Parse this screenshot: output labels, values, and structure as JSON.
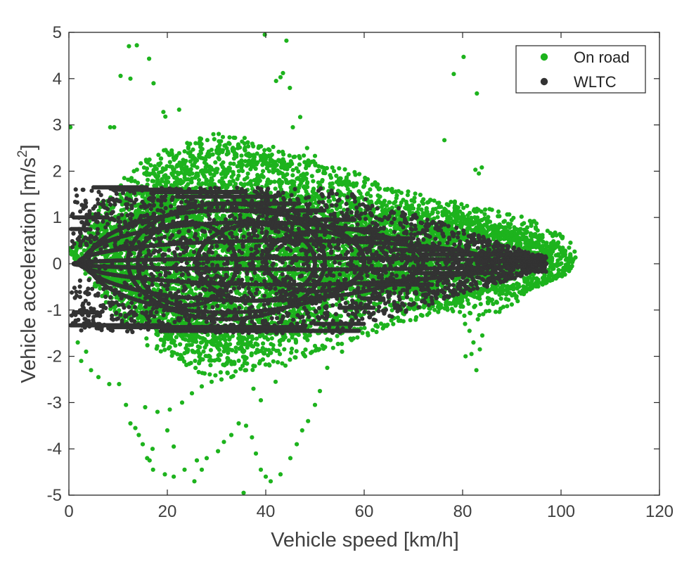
{
  "chart_data": {
    "type": "scatter",
    "xlabel": "Vehicle speed [km/h]",
    "ylabel_main": "Vehicle acceleration [m/s",
    "ylabel_sup": "2",
    "ylabel_close": "]",
    "xlim": [
      0,
      120
    ],
    "ylim": [
      -5,
      5
    ],
    "xticks": [
      0,
      20,
      40,
      60,
      80,
      100,
      120
    ],
    "yticks": [
      -5,
      -4,
      -3,
      -2,
      -1,
      0,
      1,
      2,
      3,
      4,
      5
    ],
    "grid": false,
    "legend_position": "top-right",
    "series": [
      {
        "name": "On road",
        "color": "#1db31d",
        "points": [
          [
            13.8,
            4.72
          ],
          [
            12.2,
            4.7
          ],
          [
            10.5,
            4.06
          ],
          [
            12.5,
            4.0
          ],
          [
            16.3,
            4.43
          ],
          [
            17.2,
            3.9
          ],
          [
            19.2,
            3.28
          ],
          [
            19.6,
            3.18
          ],
          [
            22.4,
            3.33
          ],
          [
            8.4,
            2.95
          ],
          [
            9.2,
            2.95
          ],
          [
            0.3,
            2.95
          ],
          [
            39.8,
            4.95
          ],
          [
            44.2,
            4.82
          ],
          [
            43.5,
            4.12
          ],
          [
            43.0,
            4.03
          ],
          [
            42.1,
            3.95
          ],
          [
            44.9,
            3.8
          ],
          [
            47.0,
            3.17
          ],
          [
            45.5,
            2.95
          ],
          [
            48.4,
            2.5
          ],
          [
            50.0,
            2.33
          ],
          [
            48.5,
            2.2
          ],
          [
            80.2,
            4.47
          ],
          [
            78.2,
            4.1
          ],
          [
            82.9,
            3.68
          ],
          [
            76.3,
            2.67
          ],
          [
            82.6,
            2.03
          ],
          [
            83.9,
            2.08
          ],
          [
            83.3,
            1.95
          ],
          [
            10.2,
            -2.6
          ],
          [
            11.6,
            -3.05
          ],
          [
            12.5,
            -3.45
          ],
          [
            14.2,
            -3.7
          ],
          [
            13.5,
            -3.55
          ],
          [
            15.0,
            -3.9
          ],
          [
            17.0,
            -4.0
          ],
          [
            16.4,
            -4.25
          ],
          [
            20.0,
            -3.6
          ],
          [
            21.3,
            -3.95
          ],
          [
            15.9,
            -4.2
          ],
          [
            17.1,
            -4.45
          ],
          [
            19.5,
            -4.55
          ],
          [
            21.3,
            -4.6
          ],
          [
            23.5,
            -4.45
          ],
          [
            25.5,
            -4.7
          ],
          [
            27.0,
            -4.45
          ],
          [
            26.0,
            -4.25
          ],
          [
            28.0,
            -4.2
          ],
          [
            30.3,
            -4.05
          ],
          [
            31.5,
            -3.85
          ],
          [
            33.0,
            -3.7
          ],
          [
            34.5,
            -3.45
          ],
          [
            36.0,
            -3.5
          ],
          [
            37.2,
            -3.75
          ],
          [
            38.0,
            -4.1
          ],
          [
            39.0,
            -4.45
          ],
          [
            41.0,
            -4.7
          ],
          [
            43.0,
            -4.55
          ],
          [
            45.0,
            -4.2
          ],
          [
            46.3,
            -3.9
          ],
          [
            47.4,
            -3.6
          ],
          [
            48.6,
            -3.4
          ],
          [
            50.0,
            -3.05
          ],
          [
            51.0,
            -2.75
          ],
          [
            35.5,
            -4.95
          ],
          [
            40.0,
            -4.6
          ],
          [
            37.5,
            -2.7
          ],
          [
            39.0,
            -2.95
          ],
          [
            42.0,
            -2.55
          ],
          [
            15.5,
            -3.1
          ],
          [
            18.0,
            -3.2
          ],
          [
            20.5,
            -3.15
          ],
          [
            23.0,
            -3.0
          ],
          [
            25.0,
            -2.8
          ],
          [
            27.0,
            -2.65
          ],
          [
            29.0,
            -2.55
          ],
          [
            31.0,
            -2.5
          ],
          [
            33.0,
            -2.45
          ],
          [
            52.5,
            -2.25
          ],
          [
            80.5,
            -1.3
          ],
          [
            81.4,
            -1.45
          ],
          [
            82.2,
            -1.7
          ],
          [
            81.8,
            -1.95
          ],
          [
            80.6,
            -2.0
          ],
          [
            82.8,
            -2.3
          ],
          [
            83.5,
            -1.85
          ],
          [
            84.0,
            -1.55
          ],
          [
            83.1,
            -1.2
          ],
          [
            2.5,
            -2.1
          ],
          [
            4.5,
            -2.3
          ],
          [
            6.0,
            -2.45
          ],
          [
            8.2,
            -2.6
          ],
          [
            3.5,
            -1.9
          ],
          [
            1.8,
            -1.7
          ],
          [
            36.0,
            -2.3
          ],
          [
            44.0,
            -2.2
          ],
          [
            48.0,
            -2.0
          ],
          [
            55.5,
            -1.9
          ]
        ],
        "clouds": [
          {
            "x": [
              0,
              100
            ],
            "y": [
              -0.8,
              1.4
            ]
          },
          {
            "x": [
              2,
              70
            ],
            "y": [
              -1.8,
              2.4
            ]
          },
          {
            "x": [
              5,
              55
            ],
            "y": [
              -2.2,
              2.7
            ]
          },
          {
            "x": [
              50,
              103
            ],
            "y": [
              -1.2,
              1.6
            ]
          }
        ],
        "loops": [
          {
            "x": [
              1,
              97
            ],
            "y": [
              -0.5,
              0.9
            ]
          },
          {
            "x": [
              4,
              92
            ],
            "y": [
              -1.1,
              1.4
            ]
          },
          {
            "x": [
              8,
              86
            ],
            "y": [
              -1.5,
              1.8
            ]
          },
          {
            "x": [
              10,
              74
            ],
            "y": [
              -1.9,
              2.2
            ]
          },
          {
            "x": [
              12,
              62
            ],
            "y": [
              -2.2,
              2.5
            ]
          },
          {
            "x": [
              14,
              48
            ],
            "y": [
              -2.4,
              2.75
            ]
          },
          {
            "x": [
              58,
              102
            ],
            "y": [
              -0.6,
              0.7
            ]
          },
          {
            "x": [
              62,
              98
            ],
            "y": [
              -0.9,
              0.8
            ]
          },
          {
            "x": [
              66,
              102
            ],
            "y": [
              -0.55,
              0.6
            ]
          },
          {
            "x": [
              70,
              94
            ],
            "y": [
              -1.1,
              0.9
            ]
          }
        ]
      },
      {
        "name": "WLTC",
        "color": "#333333",
        "segments": [
          {
            "x": [
              0.4,
              20
            ],
            "y": -1.33
          },
          {
            "x": [
              19,
              59
            ],
            "y": -1.45
          },
          {
            "x": [
              8,
              48
            ],
            "y": -1.37
          },
          {
            "x": [
              50,
              60
            ],
            "y": -1.3
          },
          {
            "x": [
              55,
              62
            ],
            "y": -0.95
          },
          {
            "x": [
              60,
              64
            ],
            "y": -0.75
          },
          {
            "x": [
              5,
              16
            ],
            "y": 1.65
          },
          {
            "x": [
              17,
              36
            ],
            "y": 1.55
          },
          {
            "x": [
              9,
              23
            ],
            "y": 1.6
          },
          {
            "x": [
              22,
              42
            ],
            "y": 1.45
          },
          {
            "x": [
              28,
              46
            ],
            "y": 1.3
          },
          {
            "x": [
              36,
              52
            ],
            "y": 1.15
          },
          {
            "x": [
              46,
              58
            ],
            "y": 0.95
          },
          {
            "x": [
              54,
              62
            ],
            "y": 0.75
          },
          {
            "x": [
              58,
              70
            ],
            "y": 0.55
          },
          {
            "x": [
              66,
              80
            ],
            "y": 0.3
          },
          {
            "x": [
              72,
              92
            ],
            "y": 0.2
          },
          {
            "x": [
              70,
              86
            ],
            "y": -0.2
          },
          {
            "x": [
              60,
              74
            ],
            "y": -0.45
          },
          {
            "x": [
              1,
              8
            ],
            "y": 1.0
          },
          {
            "x": [
              1,
              6
            ],
            "y": -1.05
          },
          {
            "x": [
              0.5,
              4
            ],
            "y": 0.75
          }
        ],
        "region": {
          "x": [
            0.5,
            97
          ],
          "y": [
            -1.5,
            1.65
          ]
        },
        "loops": [
          {
            "x": [
              1,
              97
            ],
            "y": [
              -0.12,
              0.12
            ]
          },
          {
            "x": [
              2,
              86
            ],
            "y": [
              -0.45,
              0.5
            ]
          },
          {
            "x": [
              3,
              72
            ],
            "y": [
              -0.8,
              0.9
            ]
          },
          {
            "x": [
              4,
              60
            ],
            "y": [
              -1.05,
              1.15
            ]
          },
          {
            "x": [
              12,
              52
            ],
            "y": [
              -1.2,
              1.3
            ]
          },
          {
            "x": [
              14,
              34
            ],
            "y": [
              -0.9,
              0.9
            ]
          },
          {
            "x": [
              26,
              50
            ],
            "y": [
              -0.8,
              0.85
            ]
          },
          {
            "x": [
              40,
              60
            ],
            "y": [
              -0.6,
              0.7
            ]
          }
        ]
      }
    ]
  }
}
